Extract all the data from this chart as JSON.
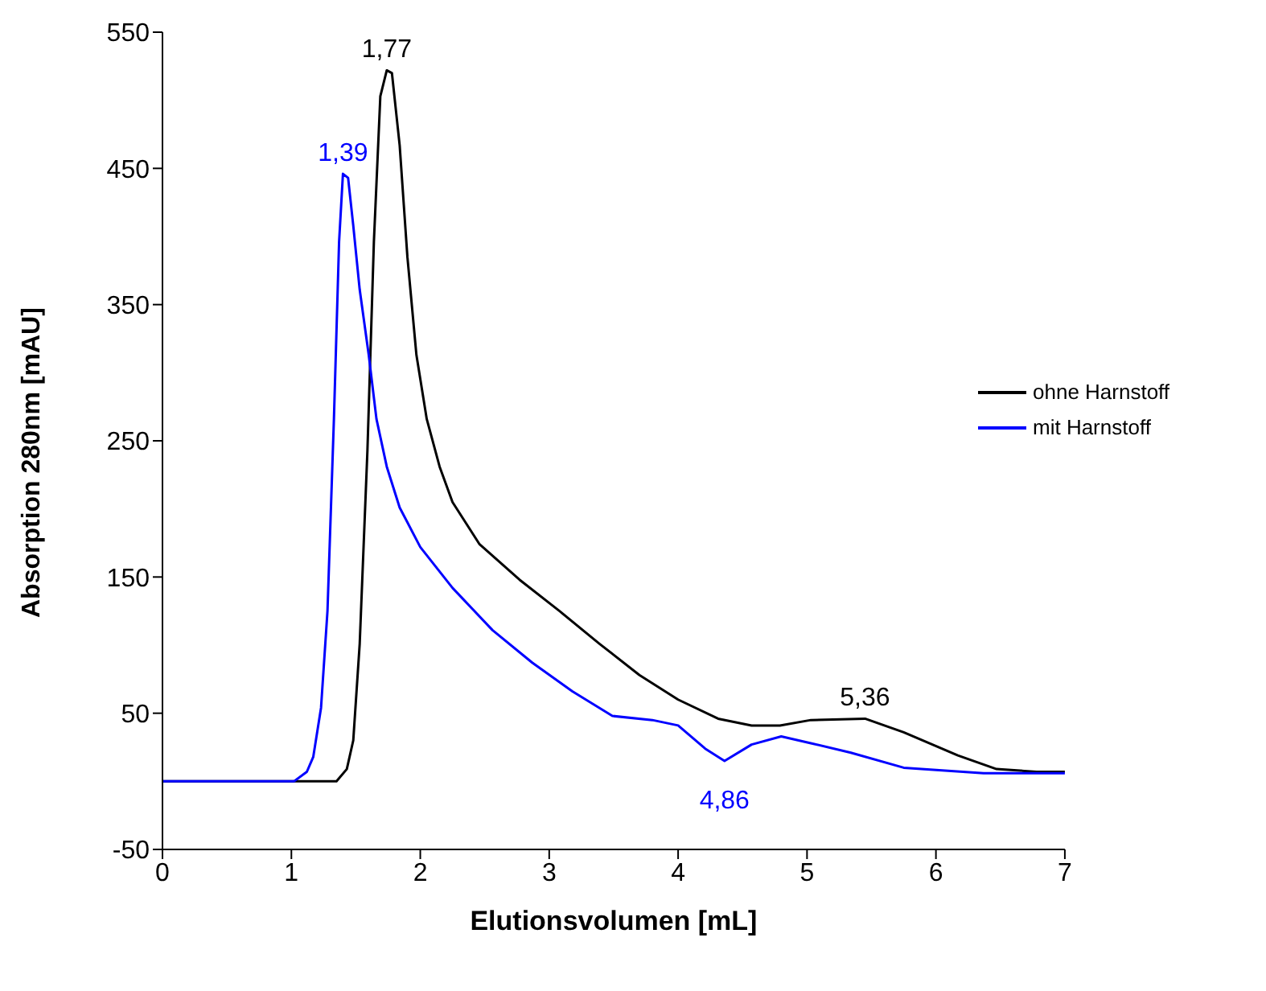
{
  "chart_data": {
    "type": "line",
    "xlabel": "Elutionsvolumen [mL]",
    "ylabel": "Absorption 280nm [mAU]",
    "xlim": [
      0,
      7
    ],
    "xticks": [
      0,
      1,
      2,
      3,
      4,
      5,
      6,
      7
    ],
    "ylim": [
      -50,
      550
    ],
    "yticks": [
      -50,
      50,
      150,
      250,
      350,
      450,
      550
    ],
    "grid": false,
    "legend": "right",
    "marker": "none",
    "line_style": "solid",
    "series": [
      {
        "name": "ohne Harnstoff",
        "color": "#000000",
        "x": [
          0,
          1.35,
          1.43,
          1.48,
          1.53,
          1.59,
          1.64,
          1.69,
          1.74,
          1.78,
          1.84,
          1.9,
          1.97,
          2.05,
          2.15,
          2.25,
          2.46,
          2.77,
          3.08,
          3.39,
          3.7,
          4.0,
          4.31,
          4.57,
          4.79,
          5.03,
          5.45,
          5.75,
          6.17,
          6.47,
          6.78,
          7
        ],
        "values": [
          0,
          0,
          9,
          30,
          101,
          243,
          396,
          503,
          522,
          520,
          467,
          385,
          313,
          266,
          231,
          205,
          174,
          148,
          125,
          101,
          78,
          60,
          46,
          41,
          41,
          45,
          46,
          36,
          19,
          9,
          7,
          7
        ]
      },
      {
        "name": "mit Harnstoff",
        "color": "#0000ff",
        "x": [
          0,
          1.02,
          1.12,
          1.17,
          1.23,
          1.28,
          1.33,
          1.37,
          1.4,
          1.44,
          1.48,
          1.53,
          1.6,
          1.66,
          1.74,
          1.84,
          2.0,
          2.25,
          2.56,
          2.87,
          3.18,
          3.49,
          3.8,
          4.0,
          4.21,
          4.36,
          4.57,
          4.8,
          5.03,
          5.34,
          5.75,
          6.37,
          7
        ],
        "values": [
          0,
          0,
          7,
          18,
          54,
          125,
          266,
          396,
          446,
          443,
          408,
          361,
          313,
          266,
          231,
          201,
          172,
          142,
          111,
          87,
          66,
          48,
          45,
          41,
          24,
          15,
          27,
          33,
          28,
          21,
          10,
          6,
          6
        ]
      }
    ],
    "annotations": [
      {
        "text": "1,77",
        "x": 1.74,
        "y": 522
      },
      {
        "text": "1,39",
        "x": 1.4,
        "y": 446
      },
      {
        "text": "5,36",
        "x": 5.45,
        "y": 46
      },
      {
        "text": "4,86",
        "x": 4.36,
        "y": 15
      }
    ]
  }
}
